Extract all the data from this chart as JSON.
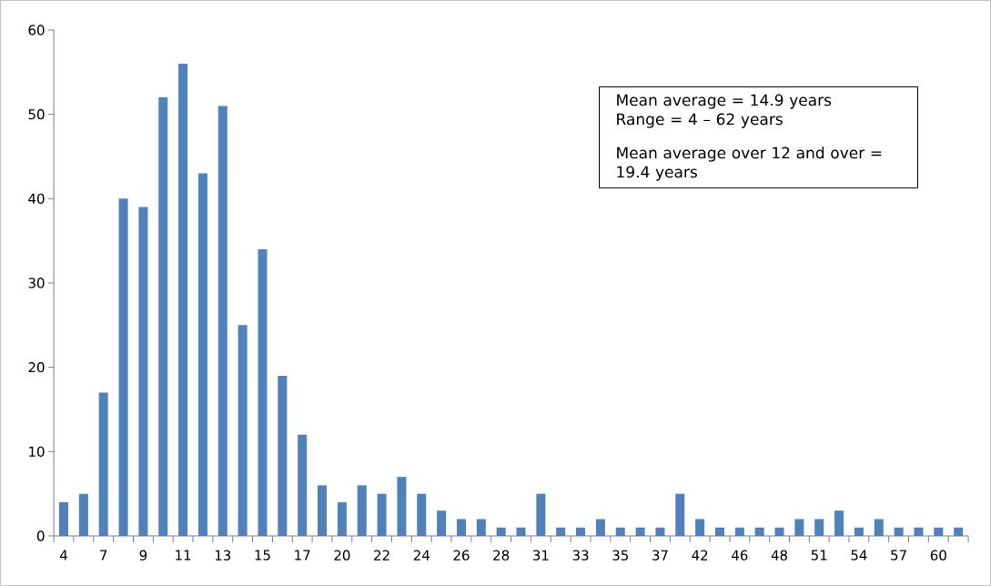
{
  "chart_data": {
    "type": "bar",
    "color": "#4f81bd",
    "categories": [
      "4",
      null,
      "7",
      null,
      "9",
      null,
      "11",
      null,
      "13",
      null,
      "15",
      null,
      "17",
      null,
      "20",
      null,
      "22",
      null,
      "24",
      null,
      "26",
      null,
      "28",
      null,
      "31",
      null,
      "33",
      null,
      "35",
      null,
      "37",
      null,
      "42",
      null,
      "46",
      null,
      "48",
      null,
      "51",
      null,
      "54",
      null,
      "57",
      null,
      "60",
      null
    ],
    "values": [
      4,
      5,
      17,
      40,
      39,
      52,
      56,
      43,
      51,
      25,
      34,
      19,
      12,
      6,
      4,
      6,
      5,
      7,
      5,
      3,
      2,
      2,
      1,
      1,
      5,
      1,
      1,
      2,
      1,
      1,
      1,
      5,
      2,
      1,
      1,
      1,
      1,
      2,
      2,
      3,
      1,
      2,
      1,
      1,
      1,
      1
    ],
    "ylim": [
      0,
      60
    ],
    "yticks": [
      0,
      10,
      20,
      30,
      40,
      50,
      60
    ],
    "grid": false,
    "annotations": [
      "Mean average = 14.9 years",
      "Range = 4 – 62 years",
      "Mean average over 12 and over = 19.4 years"
    ]
  }
}
